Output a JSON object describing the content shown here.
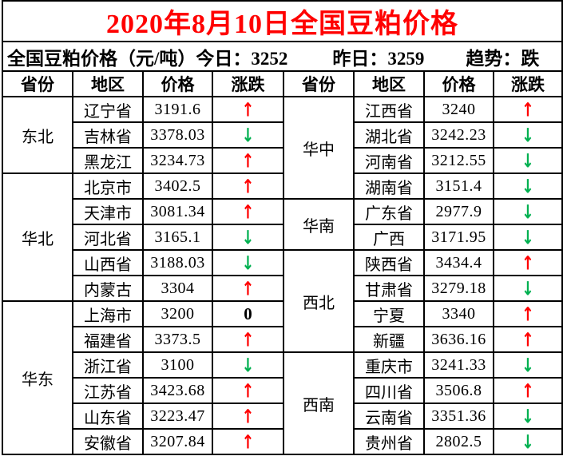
{
  "title": "2020年8月10日全国豆粕价格",
  "summary": {
    "label": "全国豆粕价格（元/吨）",
    "today_label": "今日：",
    "today_value": "3252",
    "yesterday_label": "昨日：",
    "yesterday_value": "3259",
    "trend_label": "趋势：",
    "trend_value": "跌"
  },
  "colors": {
    "title_red": "#ff0000",
    "up_arrow_red": "#ff0000",
    "down_arrow_green": "#00b050",
    "zero_black": "#000000",
    "border_black": "#000000",
    "background_white": "#ffffff"
  },
  "table": {
    "headers": [
      "省份",
      "地区",
      "价格",
      "涨跌"
    ],
    "change_symbols": {
      "up": "↑",
      "down": "↓",
      "zero": "0"
    },
    "left_groups": [
      {
        "province": "东北",
        "rows": [
          {
            "region": "辽宁省",
            "price": "3191.6",
            "change": "up"
          },
          {
            "region": "吉林省",
            "price": "3378.03",
            "change": "down"
          },
          {
            "region": "黑龙江",
            "price": "3234.73",
            "change": "up"
          }
        ]
      },
      {
        "province": "华北",
        "rows": [
          {
            "region": "北京市",
            "price": "3402.5",
            "change": "up"
          },
          {
            "region": "天津市",
            "price": "3081.34",
            "change": "up"
          },
          {
            "region": "河北省",
            "price": "3165.1",
            "change": "down"
          },
          {
            "region": "山西省",
            "price": "3188.03",
            "change": "down"
          },
          {
            "region": "内蒙古",
            "price": "3304",
            "change": "up"
          }
        ]
      },
      {
        "province": "华东",
        "rows": [
          {
            "region": "上海市",
            "price": "3200",
            "change": "zero"
          },
          {
            "region": "福建省",
            "price": "3373.5",
            "change": "up"
          },
          {
            "region": "浙江省",
            "price": "3100",
            "change": "down"
          },
          {
            "region": "江苏省",
            "price": "3423.68",
            "change": "up"
          },
          {
            "region": "山东省",
            "price": "3223.47",
            "change": "up"
          },
          {
            "region": "安徽省",
            "price": "3207.84",
            "change": "up"
          }
        ]
      }
    ],
    "right_groups": [
      {
        "province": "华中",
        "rows": [
          {
            "region": "江西省",
            "price": "3240",
            "change": "up"
          },
          {
            "region": "湖北省",
            "price": "3242.23",
            "change": "down"
          },
          {
            "region": "河南省",
            "price": "3212.55",
            "change": "down"
          },
          {
            "region": "湖南省",
            "price": "3151.4",
            "change": "down"
          }
        ]
      },
      {
        "province": "华南",
        "rows": [
          {
            "region": "广东省",
            "price": "2977.9",
            "change": "down"
          },
          {
            "region": "广西",
            "price": "3171.95",
            "change": "down"
          }
        ]
      },
      {
        "province": "西北",
        "rows": [
          {
            "region": "陕西省",
            "price": "3434.4",
            "change": "up"
          },
          {
            "region": "甘肃省",
            "price": "3279.18",
            "change": "down"
          },
          {
            "region": "宁夏",
            "price": "3340",
            "change": "up"
          },
          {
            "region": "新疆",
            "price": "3636.16",
            "change": "up"
          }
        ]
      },
      {
        "province": "西南",
        "rows": [
          {
            "region": "重庆市",
            "price": "3241.33",
            "change": "down"
          },
          {
            "region": "四川省",
            "price": "3506.8",
            "change": "up"
          },
          {
            "region": "云南省",
            "price": "3351.36",
            "change": "down"
          },
          {
            "region": "贵州省",
            "price": "2802.5",
            "change": "down"
          }
        ]
      }
    ]
  }
}
